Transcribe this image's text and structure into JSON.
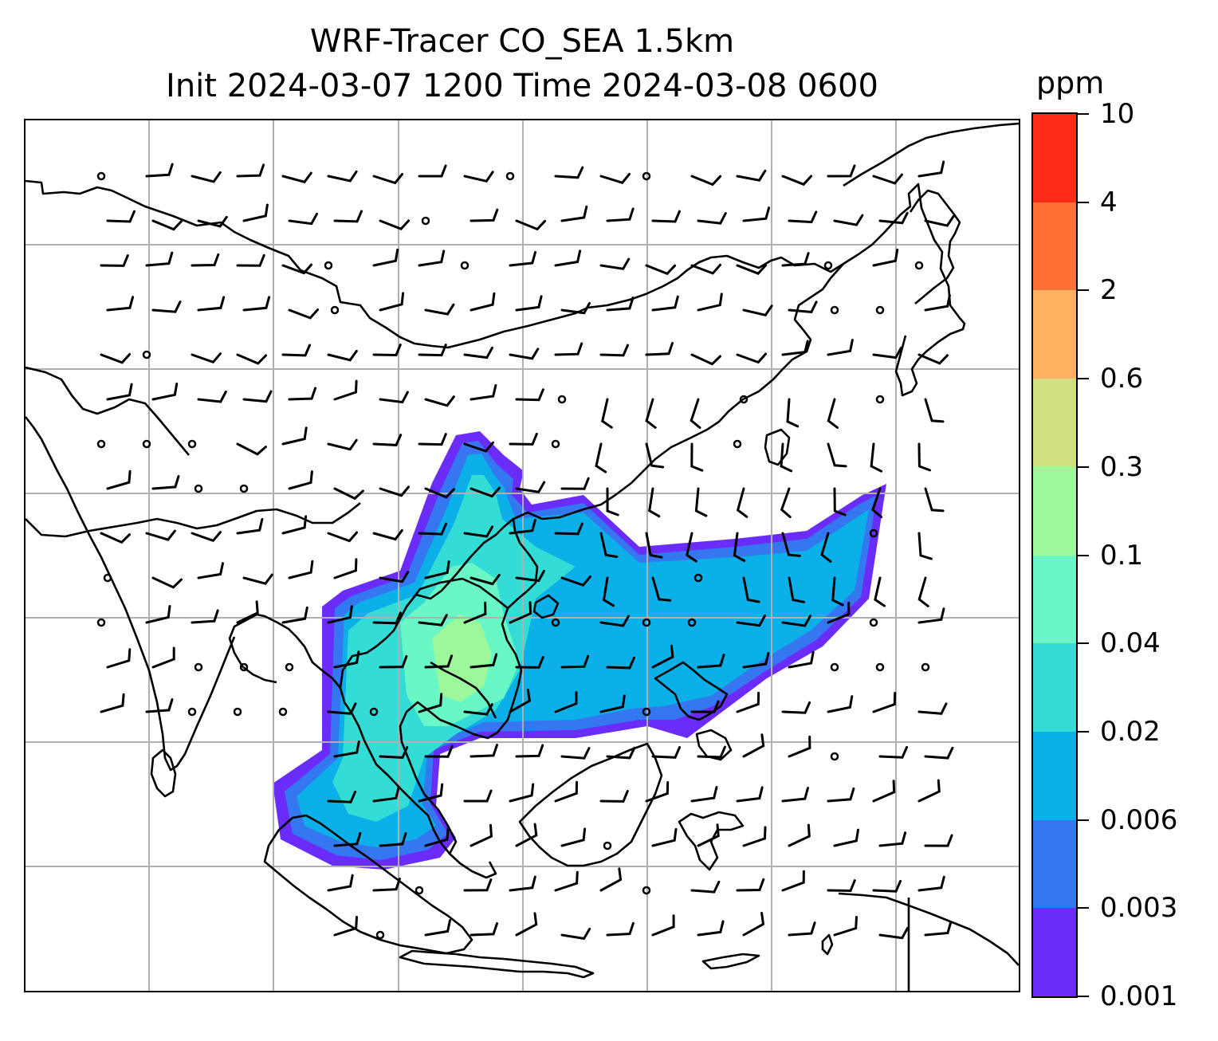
{
  "title": {
    "line1": "WRF-Tracer CO_SEA 1.5km",
    "line2": "Init 2024-03-07 1200 Time 2024-03-08 0600"
  },
  "colorbar": {
    "unit": "ppm",
    "levels": [
      "0.001",
      "0.003",
      "0.006",
      "0.02",
      "0.04",
      "0.1",
      "0.3",
      "0.6",
      "2",
      "4",
      "10"
    ],
    "colors": [
      "#6a2cf9",
      "#3577f0",
      "#0bb0e8",
      "#33ddd6",
      "#69f8c5",
      "#9df89b",
      "#cfe083",
      "#ffb060",
      "#ff7037",
      "#ff2a18"
    ]
  },
  "map": {
    "gridlines": true,
    "field": "CO tracer concentration (filled contours) with wind barbs",
    "colors": {
      "coast": "#000000",
      "grid": "#b0b0b0",
      "barb": "#000000"
    }
  }
}
